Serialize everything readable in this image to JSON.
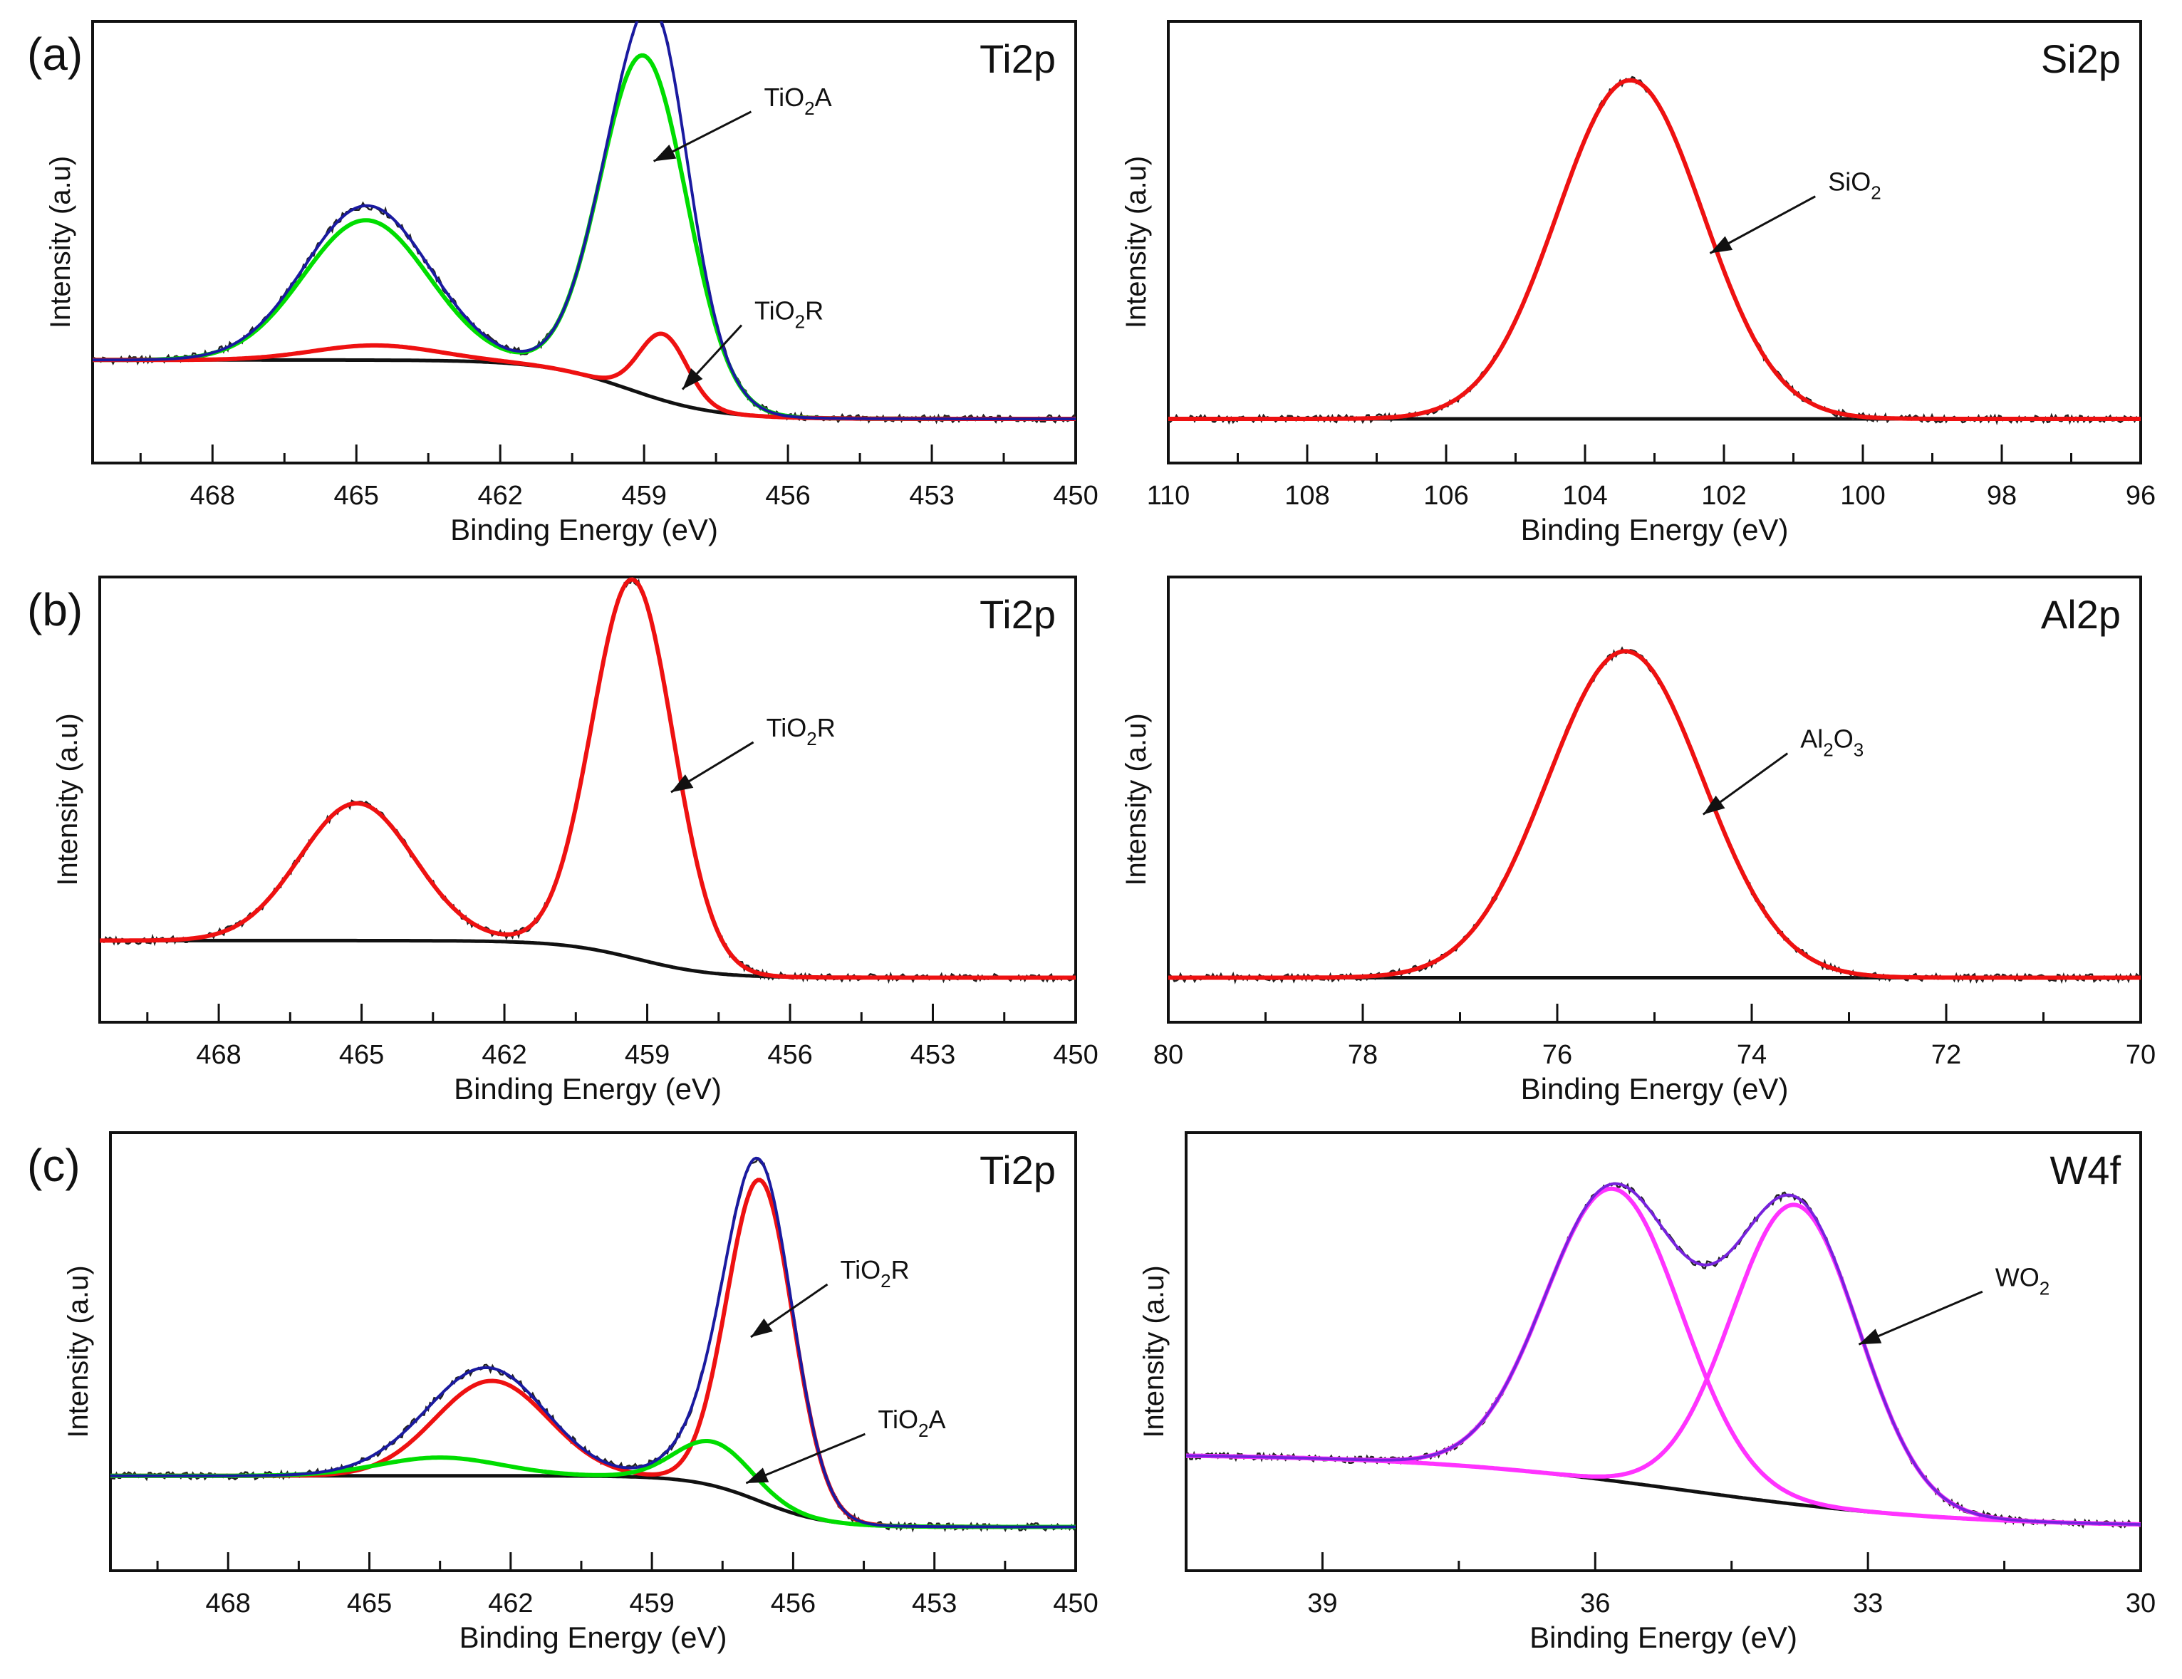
{
  "chart_data": [
    {
      "id": "a_ti2p",
      "type": "line",
      "panel_label": "(a)",
      "title": "Ti2p",
      "xlabel": "Binding Energy (eV)",
      "ylabel": "Intensity (a.u)",
      "xlim": [
        470.5,
        450
      ],
      "ylim": [
        -0.12,
        1.08
      ],
      "xticks": [
        468,
        465,
        462,
        459,
        456,
        453,
        450
      ],
      "xtick_labels": [
        "468",
        "465",
        "462",
        "459",
        "456",
        "453",
        "450"
      ],
      "background": {
        "high": 0.16,
        "low": 0.0,
        "center": 459.3,
        "width": 0.9
      },
      "components": [
        {
          "name": "TiO2A",
          "color": "#00dd00",
          "peaks": [
            {
              "center": 459.0,
              "sigma": 0.9,
              "amplitude": 0.92
            },
            {
              "center": 464.8,
              "sigma": 1.3,
              "amplitude": 0.38
            }
          ]
        },
        {
          "name": "TiO2R",
          "color": "#ee1111",
          "peaks": [
            {
              "center": 458.6,
              "sigma": 0.5,
              "amplitude": 0.18
            },
            {
              "center": 464.6,
              "sigma": 1.3,
              "amplitude": 0.04
            }
          ]
        }
      ],
      "envelope": {
        "color": "#1a1aa0",
        "show": true
      },
      "annotations": [
        {
          "main": "TiO",
          "sub": "2",
          "rest": "A",
          "tx": 456.5,
          "ty": 0.85,
          "ax": 458.8,
          "ay": 0.7
        },
        {
          "main": "TiO",
          "sub": "2",
          "rest": "R",
          "tx": 456.7,
          "ty": 0.27,
          "ax": 458.2,
          "ay": 0.08
        }
      ]
    },
    {
      "id": "a_si2p",
      "type": "line",
      "title": "Si2p",
      "xlabel": "Binding Energy (eV)",
      "ylabel": "Intensity (a.u)",
      "xlim": [
        110,
        96
      ],
      "ylim": [
        -0.12,
        1.08
      ],
      "xticks": [
        110,
        108,
        106,
        104,
        102,
        100,
        98,
        96
      ],
      "xtick_labels": [
        "110",
        "108",
        "106",
        "104",
        "102",
        "100",
        "98",
        "96"
      ],
      "background": {
        "high": 0.0,
        "low": 0.0,
        "center": 103.3,
        "width": 1.0
      },
      "components": [
        {
          "name": "SiO2",
          "color": "#ee1111",
          "peaks": [
            {
              "center": 103.35,
              "sigma": 1.05,
              "amplitude": 0.92
            }
          ]
        }
      ],
      "envelope": {
        "color": "#ee1111",
        "show": false
      },
      "annotations": [
        {
          "main": "SiO",
          "sub": "2",
          "rest": "",
          "tx": 100.5,
          "ty": 0.62,
          "ax": 102.2,
          "ay": 0.45
        }
      ]
    },
    {
      "id": "b_ti2p",
      "type": "line",
      "panel_label": "(b)",
      "title": "Ti2p",
      "xlabel": "Binding Energy (eV)",
      "ylabel": "Intensity (a.u)",
      "xlim": [
        470.5,
        450
      ],
      "ylim": [
        -0.12,
        1.08
      ],
      "xticks": [
        468,
        465,
        462,
        459,
        456,
        453,
        450
      ],
      "xtick_labels": [
        "468",
        "465",
        "462",
        "459",
        "456",
        "453",
        "450"
      ],
      "background": {
        "high": 0.1,
        "low": 0.0,
        "center": 459.2,
        "width": 0.8
      },
      "components": [
        {
          "name": "TiO2R",
          "color": "#ee1111",
          "peaks": [
            {
              "center": 459.3,
              "sigma": 0.85,
              "amplitude": 1.02
            },
            {
              "center": 465.1,
              "sigma": 1.2,
              "amplitude": 0.37
            }
          ]
        }
      ],
      "envelope": {
        "color": "#ee1111",
        "show": false
      },
      "annotations": [
        {
          "main": "TiO",
          "sub": "2",
          "rest": "R",
          "tx": 456.5,
          "ty": 0.65,
          "ax": 458.5,
          "ay": 0.5
        }
      ]
    },
    {
      "id": "b_al2p",
      "type": "line",
      "title": "Al2p",
      "xlabel": "Binding Energy (eV)",
      "ylabel": "Intensity (a.u)",
      "xlim": [
        80,
        70
      ],
      "ylim": [
        -0.12,
        1.08
      ],
      "xticks": [
        80,
        78,
        76,
        74,
        72,
        70
      ],
      "xtick_labels": [
        "80",
        "78",
        "76",
        "74",
        "72",
        "70"
      ],
      "background": {
        "high": 0.0,
        "low": 0.0,
        "center": 75.3,
        "width": 1.0
      },
      "components": [
        {
          "name": "Al2O3",
          "color": "#ee1111",
          "peaks": [
            {
              "center": 75.3,
              "sigma": 0.8,
              "amplitude": 0.88
            }
          ]
        }
      ],
      "envelope": {
        "color": "#ee1111",
        "show": false
      },
      "annotations": [
        {
          "main": "Al",
          "sub": "2",
          "rest": "O",
          "sub2": "3",
          "tx": 73.5,
          "ty": 0.62,
          "ax": 74.5,
          "ay": 0.44
        }
      ]
    },
    {
      "id": "c_ti2p",
      "type": "line",
      "panel_label": "(c)",
      "title": "Ti2p",
      "xlabel": "Binding Energy (eV)",
      "ylabel": "Intensity (a.u)",
      "xlim": [
        470.5,
        450
      ],
      "ylim": [
        -0.12,
        1.08
      ],
      "xticks": [
        468,
        465,
        462,
        459,
        456,
        453,
        450
      ],
      "xtick_labels": [
        "468",
        "465",
        "462",
        "459",
        "456",
        "453",
        "450"
      ],
      "background": {
        "high": 0.14,
        "low": 0.0,
        "center": 456.7,
        "width": 0.7
      },
      "components": [
        {
          "name": "TiO2R",
          "color": "#ee1111",
          "peaks": [
            {
              "center": 456.7,
              "sigma": 0.7,
              "amplitude": 0.88
            },
            {
              "center": 462.4,
              "sigma": 1.2,
              "amplitude": 0.26
            }
          ]
        },
        {
          "name": "TiO2A",
          "color": "#00dd00",
          "peaks": [
            {
              "center": 457.7,
              "sigma": 0.8,
              "amplitude": 0.12
            },
            {
              "center": 463.5,
              "sigma": 1.3,
              "amplitude": 0.05
            }
          ]
        }
      ],
      "envelope": {
        "color": "#1a1aa0",
        "show": true
      },
      "annotations": [
        {
          "main": "TiO",
          "sub": "2",
          "rest": "R",
          "tx": 455.0,
          "ty": 0.68,
          "ax": 456.9,
          "ay": 0.52
        },
        {
          "main": "TiO",
          "sub": "2",
          "rest": "A",
          "tx": 454.2,
          "ty": 0.27,
          "ax": 457.0,
          "ay": 0.12
        }
      ]
    },
    {
      "id": "c_w4f",
      "type": "line",
      "title": "W4f",
      "xlabel": "Binding Energy (eV)",
      "ylabel": "Intensity (a.u)",
      "xlim": [
        40.5,
        30
      ],
      "ylim": [
        -0.12,
        1.08
      ],
      "xticks": [
        39,
        36,
        33,
        30
      ],
      "xtick_labels": [
        "39",
        "36",
        "33",
        "30"
      ],
      "background": {
        "high": 0.2,
        "low": 0.0,
        "center": 35.0,
        "width": 1.5
      },
      "components": [
        {
          "name": "WO2 (36 eV)",
          "color": "#ff33ff",
          "peaks": [
            {
              "center": 35.8,
              "sigma": 0.75,
              "amplitude": 0.8
            }
          ]
        },
        {
          "name": "WO2 (33.8 eV)",
          "color": "#ff33ff",
          "peaks": [
            {
              "center": 33.8,
              "sigma": 0.7,
              "amplitude": 0.82
            }
          ]
        }
      ],
      "envelope": {
        "color": "#7722dd",
        "show": true
      },
      "annotations": [
        {
          "main": "WO",
          "sub": "2",
          "rest": "",
          "tx": 31.6,
          "ty": 0.66,
          "ax": 33.1,
          "ay": 0.5
        }
      ]
    }
  ]
}
